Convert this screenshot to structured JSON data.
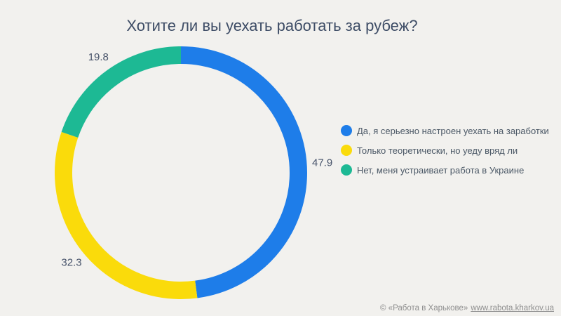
{
  "chart_data": {
    "type": "pie",
    "subtype": "donut",
    "title": "Хотите ли вы уехать работать за рубеж?",
    "legend_position": "right",
    "start_angle_deg": 0,
    "direction": "clockwise",
    "slices": [
      {
        "label": "Да, я серьезно настроен уехать на заработки",
        "value": 47.9,
        "color": "#1e7de9"
      },
      {
        "label": "Только теоретически, но уеду вряд ли",
        "value": 32.3,
        "color": "#fadb0b"
      },
      {
        "label": "Нет, меня устраивает работа в Украине",
        "value": 19.8,
        "color": "#1db994"
      }
    ],
    "data_labels": [
      "47.9",
      "32.3",
      "19.8"
    ]
  },
  "colors": {
    "background": "#f2f1ee",
    "title_text": "#3e4d66",
    "label_text": "#47536a",
    "legend_text": "#4b5866",
    "footer_text": "#8f8f8f"
  },
  "footer": {
    "copyright": "© «Работа в Харькове»",
    "link": "www.rabota.kharkov.ua"
  }
}
